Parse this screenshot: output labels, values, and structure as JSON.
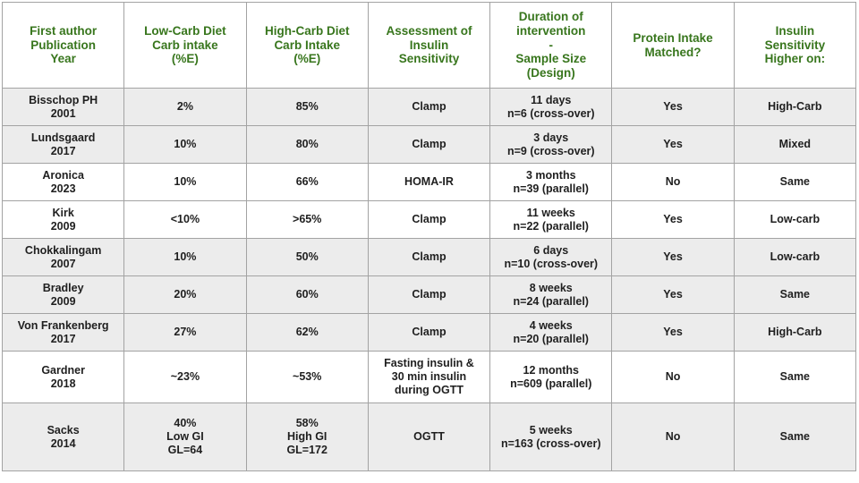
{
  "table": {
    "colors": {
      "header_text": "#38761d",
      "header_bg": "#ffffff",
      "body_text": "#1f1f1f",
      "row_bg": "#ffffff",
      "row_alt_bg": "#ececec",
      "border": "#a3a3a3"
    },
    "columns": [
      {
        "label": [
          "First author",
          "Publication",
          "Year"
        ]
      },
      {
        "label": [
          "Low-Carb Diet",
          "Carb intake",
          "(%E)"
        ]
      },
      {
        "label": [
          "High-Carb Diet",
          "Carb Intake",
          "(%E)"
        ]
      },
      {
        "label": [
          "Assessment of",
          "Insulin",
          "Sensitivity"
        ]
      },
      {
        "label": [
          "Duration of",
          "intervention",
          "-",
          "Sample Size",
          "(Design)"
        ]
      },
      {
        "label": [
          "Protein Intake",
          "Matched?"
        ]
      },
      {
        "label": [
          "Insulin",
          "Sensitivity",
          "Higher on:"
        ]
      }
    ],
    "rows": [
      {
        "shaded": true,
        "cells": [
          [
            "Bisschop PH",
            "2001"
          ],
          "2%",
          "85%",
          "Clamp",
          [
            "11 days",
            "n=6 (cross-over)"
          ],
          "Yes",
          "High-Carb"
        ]
      },
      {
        "shaded": true,
        "cells": [
          [
            "Lundsgaard",
            "2017"
          ],
          "10%",
          "80%",
          "Clamp",
          [
            "3 days",
            "n=9 (cross-over)"
          ],
          "Yes",
          "Mixed"
        ]
      },
      {
        "shaded": false,
        "cells": [
          [
            "Aronica",
            "2023"
          ],
          "10%",
          "66%",
          "HOMA-IR",
          [
            "3 months",
            "n=39 (parallel)"
          ],
          "No",
          "Same"
        ]
      },
      {
        "shaded": false,
        "cells": [
          [
            "Kirk",
            "2009"
          ],
          "<10%",
          ">65%",
          "Clamp",
          [
            "11 weeks",
            "n=22 (parallel)"
          ],
          "Yes",
          "Low-carb"
        ]
      },
      {
        "shaded": true,
        "cells": [
          [
            "Chokkalingam",
            "2007"
          ],
          "10%",
          "50%",
          "Clamp",
          [
            "6 days",
            "n=10 (cross-over)"
          ],
          "Yes",
          "Low-carb"
        ]
      },
      {
        "shaded": true,
        "cells": [
          [
            "Bradley",
            "2009"
          ],
          "20%",
          "60%",
          "Clamp",
          [
            "8 weeks",
            "n=24 (parallel)"
          ],
          "Yes",
          "Same"
        ]
      },
      {
        "shaded": true,
        "cells": [
          [
            "Von Frankenberg",
            "2017"
          ],
          "27%",
          "62%",
          "Clamp",
          [
            "4 weeks",
            "n=20 (parallel)"
          ],
          "Yes",
          "High-Carb"
        ]
      },
      {
        "shaded": false,
        "cells": [
          [
            "Gardner",
            "2018"
          ],
          "~23%",
          "~53%",
          [
            "Fasting insulin &",
            "30 min insulin",
            "during OGTT"
          ],
          [
            "12 months",
            "n=609 (parallel)"
          ],
          "No",
          "Same"
        ]
      },
      {
        "shaded": true,
        "cells": [
          [
            "Sacks",
            "2014"
          ],
          [
            "40%",
            "Low GI",
            "GL=64"
          ],
          [
            "58%",
            "High GI",
            "GL=172"
          ],
          "OGTT",
          [
            "5 weeks",
            "n=163 (cross-over)"
          ],
          "No",
          "Same"
        ]
      }
    ]
  }
}
